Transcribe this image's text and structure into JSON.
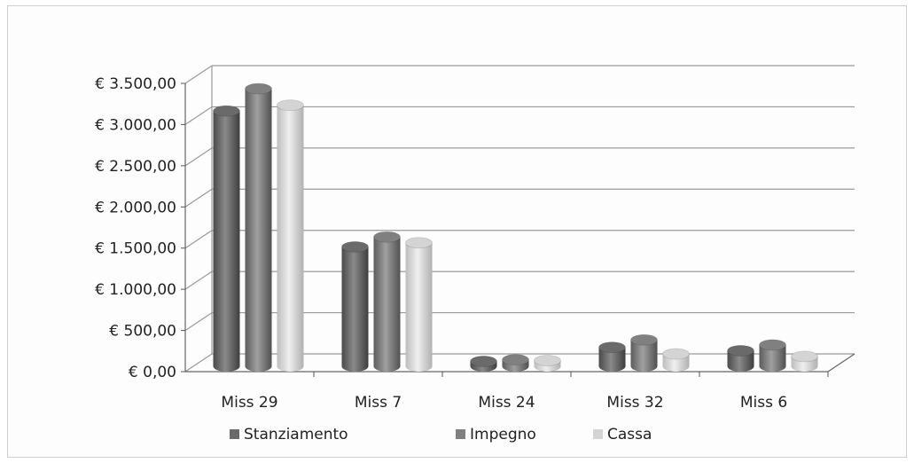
{
  "chart_data": {
    "type": "bar",
    "title": "",
    "xlabel": "",
    "ylabel": "",
    "categories": [
      "Miss 29",
      "Miss 7",
      "Miss 24",
      "Miss 32",
      "Miss 6"
    ],
    "series": [
      {
        "name": "Stanziamento",
        "values": [
          3100,
          1450,
          60,
          230,
          190
        ],
        "color": "#6a6a6a"
      },
      {
        "name": "Impegno",
        "values": [
          3370,
          1570,
          80,
          320,
          260
        ],
        "color": "#808080"
      },
      {
        "name": "Cassa",
        "values": [
          3170,
          1500,
          70,
          150,
          120
        ],
        "color": "#d4d4d4"
      }
    ],
    "ylim": [
      0,
      3500
    ],
    "yticks": [
      0,
      500,
      1000,
      1500,
      2000,
      2500,
      3000,
      3500
    ],
    "ytick_labels": [
      "€ 0,00",
      "€ 500,00",
      "€ 1.000,00",
      "€ 1.500,00",
      "€ 2.000,00",
      "€ 2.500,00",
      "€ 3.000,00",
      "€ 3.500,00"
    ],
    "grid": true,
    "legend_position": "bottom",
    "style": "3d-cylinder"
  }
}
